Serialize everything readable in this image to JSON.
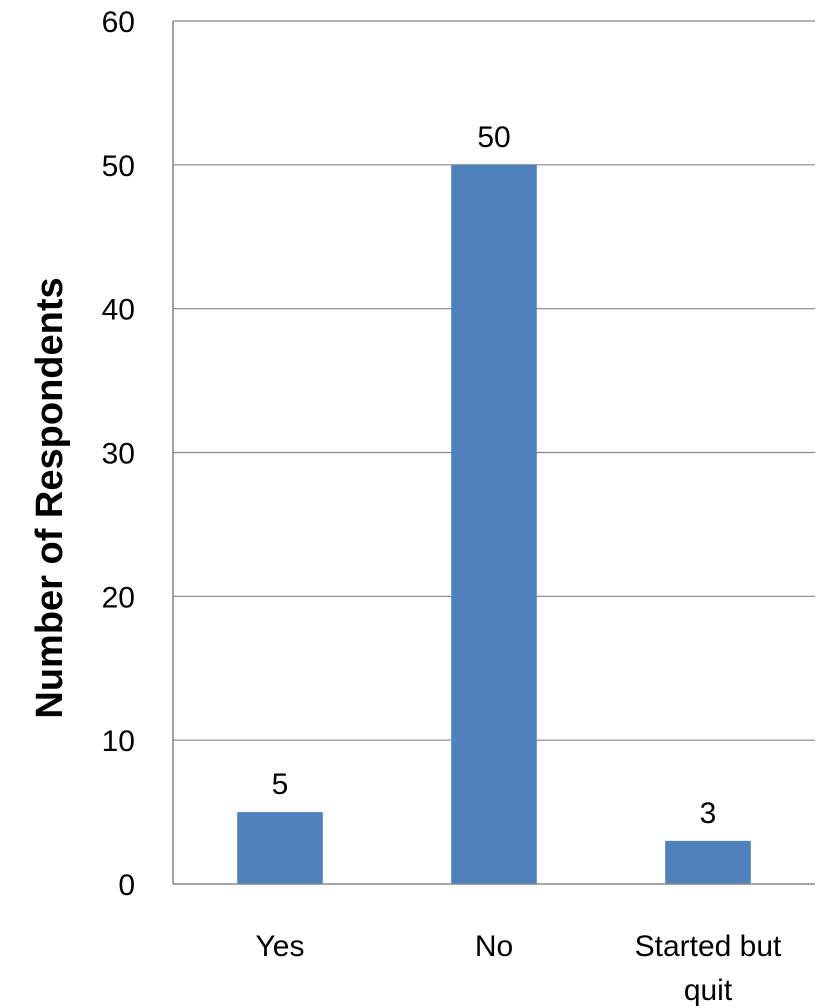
{
  "chart_data": {
    "type": "bar",
    "categories": [
      [
        "Yes"
      ],
      [
        "No"
      ],
      [
        "Started but",
        "quit"
      ]
    ],
    "values": [
      5,
      50,
      3
    ],
    "data_labels": [
      "5",
      "50",
      "3"
    ],
    "xlabel": "",
    "ylabel": "Number of Respondents",
    "ylim": [
      0,
      60
    ],
    "y_ticks": [
      0,
      10,
      20,
      30,
      40,
      50,
      60
    ],
    "y_tick_labels": [
      "0",
      "10",
      "20",
      "30",
      "40",
      "50",
      "60"
    ],
    "grid": true,
    "legend": "none",
    "colors": {
      "bar": "#4F81BD",
      "grid": "#868686",
      "axis": "#868686"
    }
  }
}
